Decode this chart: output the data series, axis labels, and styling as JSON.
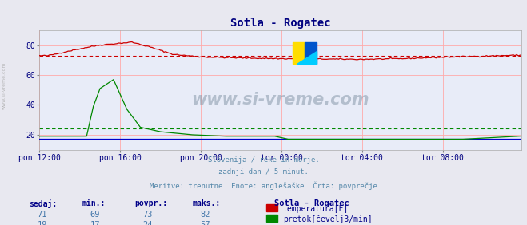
{
  "title": "Sotla - Rogatec",
  "title_color": "#000080",
  "bg_color": "#e8e8f0",
  "plot_bg_color": "#e8ecf8",
  "grid_color": "#ffaaaa",
  "xlabel_color": "#000080",
  "tick_color": "#000080",
  "text_info_line1": "Slovenija / reke in morje.",
  "text_info_line2": "zadnji dan / 5 minut.",
  "text_info_line3": "Meritve: trenutne  Enote: anglešaške  Črta: povprečje",
  "footer_color": "#5588aa",
  "xticklabels": [
    "pon 12:00",
    "pon 16:00",
    "pon 20:00",
    "tor 00:00",
    "tor 04:00",
    "tor 08:00"
  ],
  "xtick_positions": [
    0,
    48,
    96,
    144,
    192,
    240
  ],
  "total_points": 288,
  "ylim": [
    10,
    90
  ],
  "yticks": [
    20,
    40,
    60,
    80
  ],
  "temp_color": "#cc0000",
  "flow_color": "#008800",
  "height_color": "#0000cc",
  "avg_temp_color": "#cc0000",
  "avg_flow_color": "#008800",
  "avg_temp": 73,
  "avg_flow": 24,
  "watermark": "www.si-vreme.com",
  "watermark_color": "#8899aa",
  "logo_yellow": "#ffdd00",
  "logo_blue": "#0055cc",
  "logo_cyan": "#00ccff",
  "legend_title": "Sotla - Rogatec",
  "legend_items": [
    {
      "label": "temperatura[F]",
      "color": "#cc0000"
    },
    {
      "label": "pretok[čevelj3/min]",
      "color": "#008800"
    }
  ],
  "stats": {
    "temp": {
      "sedaj": 71,
      "min": 69,
      "povpr": 73,
      "maks": 82
    },
    "flow": {
      "sedaj": 19,
      "min": 17,
      "povpr": 24,
      "maks": 57
    }
  },
  "stats_col_labels": [
    "sedaj:",
    "min.:",
    "povpr.:",
    "maks.:"
  ],
  "stats_label_color": "#000088",
  "stats_val_color": "#4477aa"
}
